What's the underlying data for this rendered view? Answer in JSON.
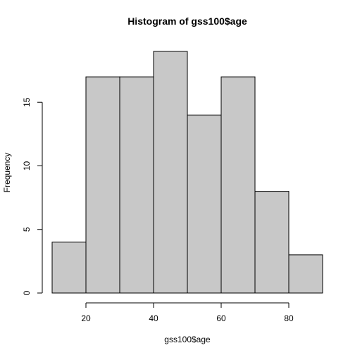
{
  "chart_data": {
    "type": "bar",
    "title": "Histogram of gss100$age",
    "xlabel": "gss100$age",
    "ylabel": "Frequency",
    "bins": [
      {
        "start": 10,
        "end": 20,
        "count": 4
      },
      {
        "start": 20,
        "end": 30,
        "count": 17
      },
      {
        "start": 30,
        "end": 40,
        "count": 17
      },
      {
        "start": 40,
        "end": 50,
        "count": 19
      },
      {
        "start": 50,
        "end": 60,
        "count": 14
      },
      {
        "start": 60,
        "end": 70,
        "count": 17
      },
      {
        "start": 70,
        "end": 80,
        "count": 8
      },
      {
        "start": 80,
        "end": 90,
        "count": 3
      }
    ],
    "xlim": [
      10,
      90
    ],
    "ylim": [
      0,
      19
    ],
    "x_ticks": [
      "20",
      "40",
      "60",
      "80"
    ],
    "y_ticks": [
      "0",
      "5",
      "10",
      "15"
    ],
    "bar_fill": "#c8c8c8",
    "grid": false,
    "legend": "none"
  }
}
